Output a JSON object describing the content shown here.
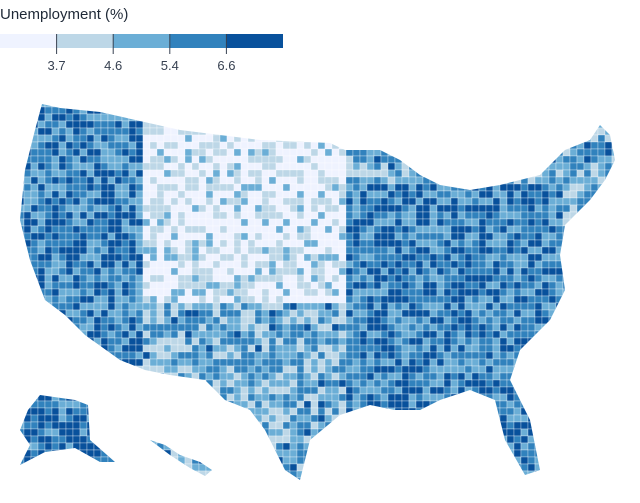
{
  "legend": {
    "title": "Unemployment (%)",
    "thresholds": [
      "3.7",
      "4.6",
      "5.4",
      "6.6"
    ],
    "colors": [
      "#eff3ff",
      "#bdd7e7",
      "#6baed6",
      "#3182bd",
      "#08519c"
    ]
  },
  "map": {
    "type": "choropleth",
    "geography": "US counties",
    "scale": "quantize"
  }
}
